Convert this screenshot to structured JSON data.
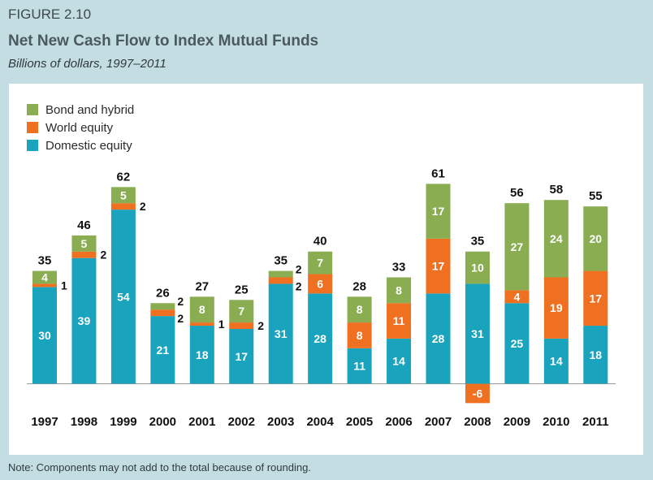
{
  "figure_label": "FIGURE 2.10",
  "note": "Note: Components may not add to the total because of rounding.",
  "colors": {
    "bond": "#8aad52",
    "world": "#f07022",
    "domestic": "#1aa3bd"
  },
  "chart_data": {
    "type": "bar",
    "stacked": true,
    "title": "Net New Cash Flow to Index Mutual Funds",
    "subtitle": "Billions of dollars, 1997–2011",
    "xlabel": "",
    "ylabel": "",
    "legend_position": "top-left",
    "grid": false,
    "categories": [
      "1997",
      "1998",
      "1999",
      "2000",
      "2001",
      "2002",
      "2003",
      "2004",
      "2005",
      "2006",
      "2007",
      "2008",
      "2009",
      "2010",
      "2011"
    ],
    "series": [
      {
        "name": "Domestic equity",
        "values": [
          30,
          39,
          54,
          21,
          18,
          17,
          31,
          28,
          11,
          14,
          28,
          31,
          25,
          14,
          18
        ]
      },
      {
        "name": "World equity",
        "values": [
          1,
          2,
          2,
          2,
          1,
          2,
          2,
          6,
          8,
          11,
          17,
          -6,
          4,
          19,
          17
        ]
      },
      {
        "name": "Bond and hybrid",
        "values": [
          4,
          5,
          5,
          2,
          8,
          7,
          2,
          7,
          8,
          8,
          17,
          10,
          27,
          24,
          20
        ]
      }
    ],
    "totals": [
      35,
      46,
      62,
      26,
      27,
      25,
      35,
      40,
      28,
      33,
      61,
      35,
      56,
      58,
      55
    ]
  }
}
